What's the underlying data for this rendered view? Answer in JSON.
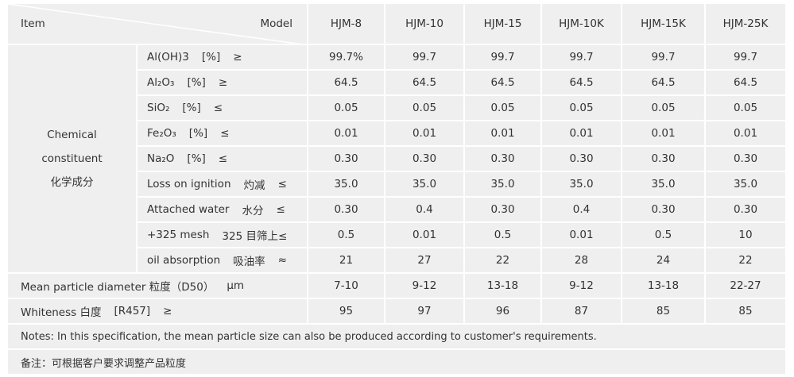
{
  "header": {
    "item": "Item",
    "model": "Model",
    "models": [
      "HJM-8",
      "HJM-10",
      "HJM-15",
      "HJM-10K",
      "HJM-15K",
      "HJM-25K"
    ]
  },
  "chemical": {
    "group": [
      "Chemical",
      "constituent",
      "化学成分"
    ],
    "rows": [
      {
        "parts": [
          "Al(OH)3",
          "[%]",
          "≥"
        ],
        "values": [
          "99.7%",
          "99.7",
          "99.7",
          "99.7",
          "99.7",
          "99.7"
        ]
      },
      {
        "parts": [
          "Al₂O₃",
          "[%]",
          "≥"
        ],
        "values": [
          "64.5",
          "64.5",
          "64.5",
          "64.5",
          "64.5",
          "64.5"
        ]
      },
      {
        "parts": [
          "SiO₂",
          "[%]",
          "≤"
        ],
        "values": [
          "0.05",
          "0.05",
          "0.05",
          "0.05",
          "0.05",
          "0.05"
        ]
      },
      {
        "parts": [
          "Fe₂O₃",
          "[%]",
          "≤"
        ],
        "values": [
          "0.01",
          "0.01",
          "0.01",
          "0.01",
          "0.01",
          "0.01"
        ]
      },
      {
        "parts": [
          "Na₂O",
          "[%]",
          "≤"
        ],
        "values": [
          "0.30",
          "0.30",
          "0.30",
          "0.30",
          "0.30",
          "0.30"
        ]
      },
      {
        "parts": [
          "Loss on ignition",
          "灼减",
          "≤"
        ],
        "values": [
          "35.0",
          "35.0",
          "35.0",
          "35.0",
          "35.0",
          "35.0"
        ]
      },
      {
        "parts": [
          "Attached water",
          "水分",
          "≤"
        ],
        "values": [
          "0.30",
          "0.4",
          "0.30",
          "0.4",
          "0.30",
          "0.30"
        ]
      },
      {
        "parts": [
          "+325 mesh",
          "325 目筛上≤"
        ],
        "values": [
          "0.5",
          "0.01",
          "0.5",
          "0.01",
          "0.5",
          "10"
        ]
      },
      {
        "parts": [
          "oil absorption",
          "吸油率",
          "≈"
        ],
        "values": [
          "21",
          "27",
          "22",
          "28",
          "24",
          "22"
        ]
      }
    ]
  },
  "other_rows": [
    {
      "parts": [
        "Mean particle diameter 粒度（D50）",
        "μm"
      ],
      "values": [
        "7-10",
        "9-12",
        "13-18",
        "9-12",
        "13-18",
        "22-27"
      ]
    },
    {
      "parts": [
        "Whiteness 白度",
        "[R457]",
        "≥"
      ],
      "values": [
        "95",
        "97",
        "96",
        "87",
        "85",
        "85"
      ]
    }
  ],
  "notes": [
    "Notes: In this specification, the mean particle size can also be produced according to customer's requirements.",
    "备注：可根据客户要求调整产品粒度"
  ]
}
